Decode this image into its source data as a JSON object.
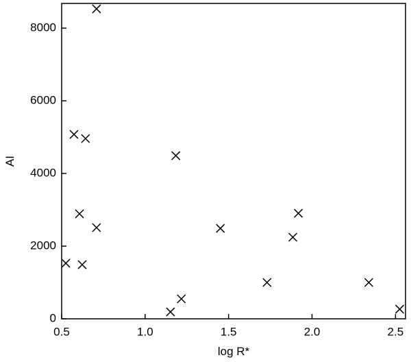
{
  "chart_data": {
    "type": "scatter",
    "x_label": "log R*",
    "y_label": "AI",
    "xlim": [
      0.5,
      2.56
    ],
    "ylim": [
      0,
      8680
    ],
    "xticks": [
      {
        "value": 0.5,
        "label": "0.5"
      },
      {
        "value": 1,
        "label": "1.0"
      },
      {
        "value": 1.5,
        "label": "1.5"
      },
      {
        "value": 2,
        "label": "2.0"
      },
      {
        "value": 2.5,
        "label": "2.5"
      }
    ],
    "yticks": [
      0,
      2000,
      4000,
      6000,
      8000
    ],
    "color": "#000000",
    "marker": "x",
    "x": [
      0.525,
      0.574,
      0.607,
      0.623,
      0.643,
      0.709,
      0.709,
      1.152,
      1.184,
      1.217,
      1.451,
      1.73,
      1.885,
      1.918,
      2.34,
      2.525
    ],
    "values": [
      1530,
      5075,
      2890,
      1490,
      4960,
      8530,
      2510,
      190,
      4490,
      550,
      2490,
      1000,
      2245,
      2905,
      1000,
      265
    ]
  }
}
